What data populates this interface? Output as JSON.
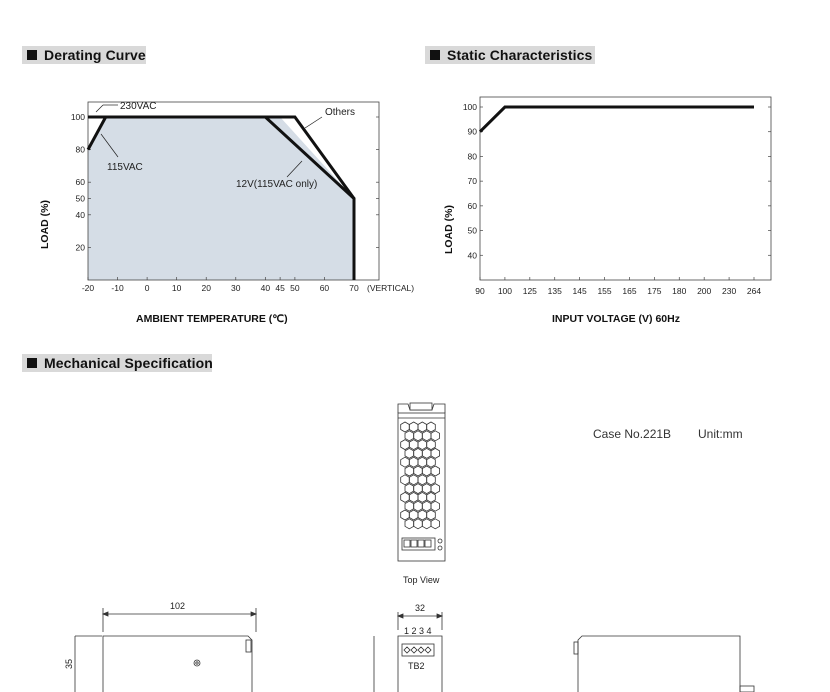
{
  "sections": {
    "derating": "Derating Curve",
    "static": "Static Characteristics",
    "mechanical": "Mechanical Specification"
  },
  "chart_data": [
    {
      "type": "line",
      "title": "Derating Curve",
      "xlabel": "AMBIENT TEMPERATURE (℃)",
      "ylabel": "LOAD (%)",
      "x_ticks": [
        "-20",
        "-10",
        "0",
        "10",
        "20",
        "30",
        "40",
        "45",
        "50",
        "60",
        "70"
      ],
      "x_suffix": "(VERTICAL)",
      "y_ticks": [
        "20",
        "40",
        "50",
        "60",
        "80",
        "100"
      ],
      "xlim": [
        -20,
        70
      ],
      "ylim": [
        0,
        100
      ],
      "series": [
        {
          "name": "230VAC",
          "points": [
            [
              -20,
              100
            ],
            [
              40,
              100
            ],
            [
              70,
              50
            ],
            [
              70,
              0
            ]
          ]
        },
        {
          "name": "Others",
          "points": [
            [
              -20,
              100
            ],
            [
              50,
              100
            ],
            [
              70,
              50
            ],
            [
              70,
              0
            ]
          ]
        },
        {
          "name": "115VAC",
          "points": [
            [
              -20,
              80
            ],
            [
              -14,
              100
            ]
          ]
        },
        {
          "name": "12V(115VAC only)",
          "points": [
            [
              45,
              100
            ],
            [
              70,
              50
            ]
          ]
        }
      ],
      "annotations": [
        "230VAC",
        "Others",
        "115VAC",
        "12V(115VAC only)"
      ],
      "fill_color": "#d5dde6"
    },
    {
      "type": "line",
      "title": "Static Characteristics",
      "xlabel": "INPUT VOLTAGE (V) 60Hz",
      "ylabel": "LOAD (%)",
      "x_ticks": [
        "90",
        "100",
        "125",
        "135",
        "145",
        "155",
        "165",
        "175",
        "180",
        "200",
        "230",
        "264"
      ],
      "y_ticks": [
        "40",
        "50",
        "60",
        "70",
        "80",
        "90",
        "100"
      ],
      "ylim": [
        30,
        105
      ],
      "series": [
        {
          "name": "",
          "points": [
            [
              90,
              90
            ],
            [
              100,
              100
            ],
            [
              264,
              100
            ]
          ]
        }
      ]
    }
  ],
  "mechanical": {
    "case_no": "Case No.221B",
    "unit": "Unit:mm",
    "top_view_label": "Top View",
    "dim_length": "102",
    "dim_width": "32",
    "dim_height": "35",
    "pins": "1 2 3 4",
    "terminal": "TB2"
  },
  "colors": {
    "line": "#111111",
    "fill": "#d5dde6",
    "header_bg": "#d9d9d9"
  }
}
